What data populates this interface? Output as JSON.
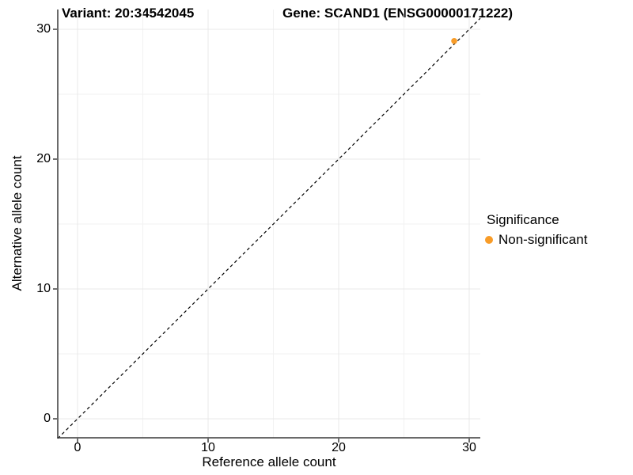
{
  "title": {
    "variant": "Variant: 20:34542045",
    "gene": "Gene: SCAND1 (ENSG00000171222)"
  },
  "axes": {
    "x": {
      "label": "Reference allele count",
      "ticks": [
        0,
        10,
        20,
        30
      ],
      "tick_labels": [
        "0",
        "10",
        "20",
        "30"
      ],
      "minor_ticks": [
        5,
        15,
        25
      ]
    },
    "y": {
      "label": "Alternative allele count",
      "ticks": [
        0,
        10,
        20,
        30
      ],
      "tick_labels": [
        "0",
        "10",
        "20",
        "30"
      ],
      "minor_ticks": [
        5,
        15,
        25
      ]
    }
  },
  "legend": {
    "title": "Significance",
    "items": [
      {
        "label": "Non-significant",
        "color": "#F89C28"
      }
    ]
  },
  "colors": {
    "point_orange": "#F89C28",
    "grid_major": "#e8e8e8",
    "grid_minor": "#f2f2f2",
    "axis_line": "#383838",
    "tick_mark": "#333333",
    "reference_line": "#000000",
    "background": "#ffffff"
  },
  "chart_data": {
    "type": "scatter",
    "title": "Variant: 20:34542045   Gene: SCAND1 (ENSG00000171222)",
    "xlabel": "Reference allele count",
    "ylabel": "Alternative allele count",
    "xlim": [
      -1.5,
      30.9
    ],
    "ylim": [
      -1.5,
      31.5
    ],
    "grid": "major+minor",
    "legend_position": "right",
    "series": [
      {
        "name": "Non-significant",
        "color": "#F89C28",
        "points": [
          {
            "x": 29,
            "y": 29,
            "x_plotted": 28.85,
            "y_plotted": 29.1
          }
        ]
      }
    ],
    "reference_line": {
      "equation": "y = x",
      "style": "dashed",
      "color": "#000000"
    }
  }
}
